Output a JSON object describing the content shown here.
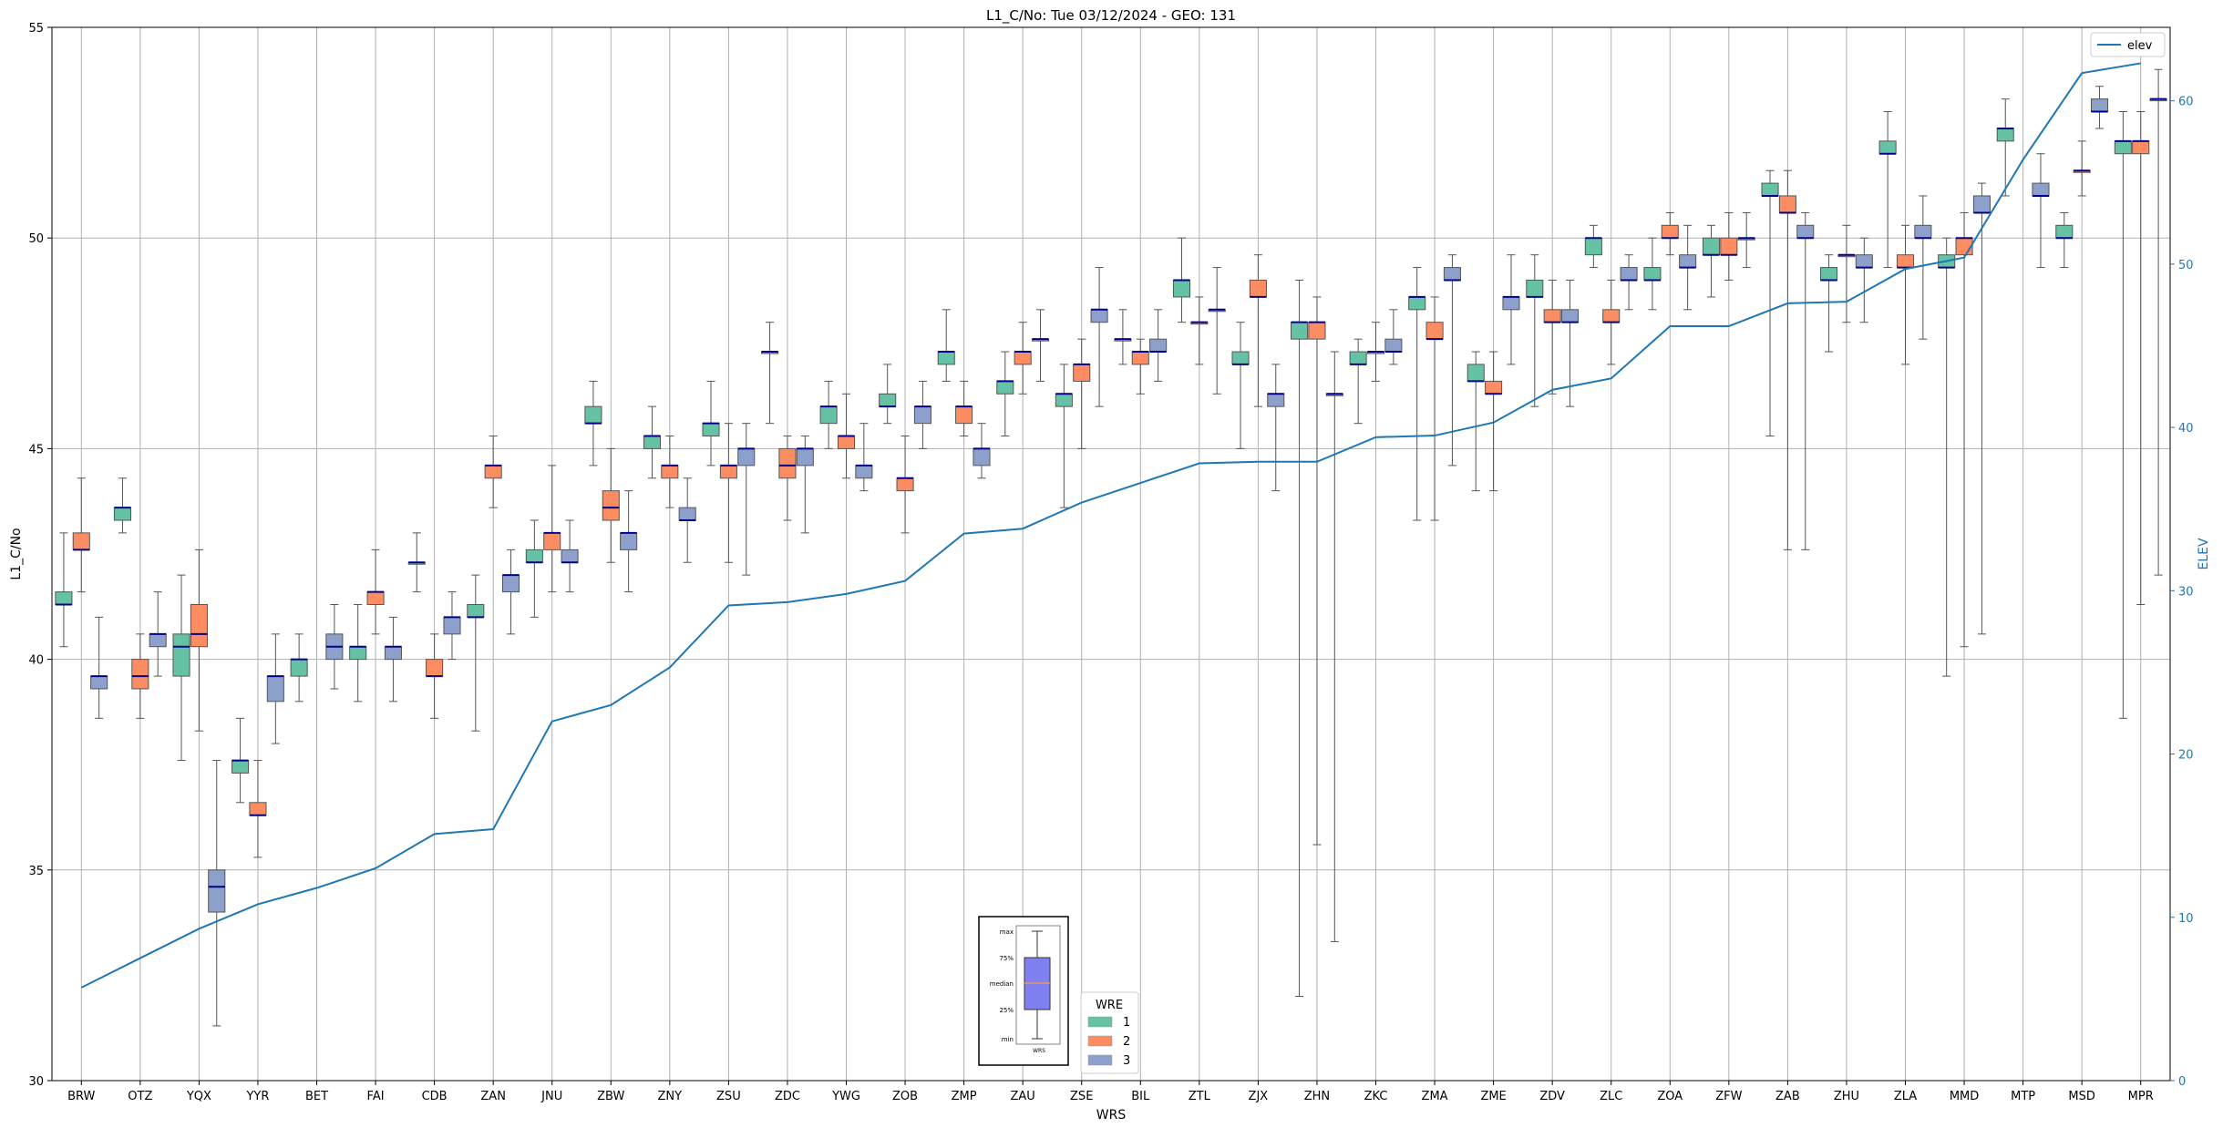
{
  "chart_data": {
    "type": "box",
    "title": "L1_C/No: Tue 03/12/2024 - GEO: 131",
    "xlabel": "WRS",
    "ylabel": "L1_C/No",
    "y2label": "ELEV",
    "ylim": [
      30,
      55
    ],
    "y2lim": [
      0,
      64.5
    ],
    "yticks": [
      30,
      35,
      40,
      45,
      50,
      55
    ],
    "y2ticks": [
      0,
      10,
      20,
      30,
      40,
      50,
      60
    ],
    "grid": true,
    "categories": [
      "BRW",
      "OTZ",
      "YQX",
      "YYR",
      "BET",
      "FAI",
      "CDB",
      "ZAN",
      "JNU",
      "ZBW",
      "ZNY",
      "ZSU",
      "ZDC",
      "YWG",
      "ZOB",
      "ZMP",
      "ZAU",
      "ZSE",
      "BIL",
      "ZTL",
      "ZJX",
      "ZHN",
      "ZKC",
      "ZMA",
      "ZME",
      "ZDV",
      "ZLC",
      "ZOA",
      "ZFW",
      "ZAB",
      "ZHU",
      "ZLA",
      "MMD",
      "MTP",
      "MSD",
      "MPR"
    ],
    "legend_line": {
      "label": "elev",
      "position": "top-right"
    },
    "legend_wre": {
      "title": "WRE",
      "position": "bottom-center",
      "entries": [
        "1",
        "2",
        "3"
      ]
    },
    "wre_colors": {
      "1": "#66c2a5",
      "2": "#fc8d62",
      "3": "#8da0cb"
    },
    "median_color": "#00008b",
    "elev_color": "#1f77b4",
    "box_key_labels": [
      "max",
      "75%",
      "median",
      "25%",
      "min"
    ],
    "box_key_xlabel": "WRS",
    "elev": [
      5.7,
      7.5,
      9.3,
      10.8,
      11.8,
      13.0,
      15.1,
      15.4,
      22.0,
      23.0,
      25.3,
      29.1,
      29.3,
      29.8,
      30.6,
      33.5,
      33.8,
      35.4,
      36.6,
      37.8,
      37.9,
      37.9,
      39.4,
      39.5,
      40.3,
      42.3,
      43.0,
      46.2,
      46.2,
      47.6,
      47.7,
      49.7,
      50.4,
      56.4,
      61.7,
      62.3
    ],
    "boxes": [
      {
        "wrs": "BRW",
        "wre": 1,
        "min": 40.3,
        "q1": 41.3,
        "med": 41.3,
        "q3": 41.6,
        "max": 43.0
      },
      {
        "wrs": "BRW",
        "wre": 2,
        "min": 41.6,
        "q1": 42.6,
        "med": 42.6,
        "q3": 43.0,
        "max": 44.3
      },
      {
        "wrs": "BRW",
        "wre": 3,
        "min": 38.6,
        "q1": 39.3,
        "med": 39.6,
        "q3": 39.6,
        "max": 41.0
      },
      {
        "wrs": "OTZ",
        "wre": 1,
        "min": 43.0,
        "q1": 43.3,
        "med": 43.6,
        "q3": 43.6,
        "max": 44.3
      },
      {
        "wrs": "OTZ",
        "wre": 2,
        "min": 38.6,
        "q1": 39.3,
        "med": 39.6,
        "q3": 40.0,
        "max": 40.6
      },
      {
        "wrs": "OTZ",
        "wre": 3,
        "min": 39.6,
        "q1": 40.3,
        "med": 40.6,
        "q3": 40.6,
        "max": 41.6
      },
      {
        "wrs": "YQX",
        "wre": 1,
        "min": 37.6,
        "q1": 39.6,
        "med": 40.3,
        "q3": 40.6,
        "max": 42.0
      },
      {
        "wrs": "YQX",
        "wre": 2,
        "min": 38.3,
        "q1": 40.3,
        "med": 40.6,
        "q3": 41.3,
        "max": 42.6
      },
      {
        "wrs": "YQX",
        "wre": 3,
        "min": 31.3,
        "q1": 34.0,
        "med": 34.6,
        "q3": 35.0,
        "max": 37.6
      },
      {
        "wrs": "YYR",
        "wre": 1,
        "min": 36.6,
        "q1": 37.3,
        "med": 37.6,
        "q3": 37.6,
        "max": 38.6
      },
      {
        "wrs": "YYR",
        "wre": 2,
        "min": 35.3,
        "q1": 36.3,
        "med": 36.3,
        "q3": 36.6,
        "max": 37.6
      },
      {
        "wrs": "YYR",
        "wre": 3,
        "min": 38.0,
        "q1": 39.0,
        "med": 39.6,
        "q3": 39.6,
        "max": 40.6
      },
      {
        "wrs": "BET",
        "wre": 1,
        "min": 39.0,
        "q1": 39.6,
        "med": 40.0,
        "q3": 40.0,
        "max": 40.6
      },
      {
        "wrs": "BET",
        "wre": 3,
        "min": 39.3,
        "q1": 40.0,
        "med": 40.3,
        "q3": 40.6,
        "max": 41.3
      },
      {
        "wrs": "FAI",
        "wre": 1,
        "min": 39.0,
        "q1": 40.0,
        "med": 40.3,
        "q3": 40.3,
        "max": 41.3
      },
      {
        "wrs": "FAI",
        "wre": 2,
        "min": 40.6,
        "q1": 41.3,
        "med": 41.6,
        "q3": 41.6,
        "max": 42.6
      },
      {
        "wrs": "FAI",
        "wre": 3,
        "min": 39.0,
        "q1": 40.0,
        "med": 40.3,
        "q3": 40.3,
        "max": 41.0
      },
      {
        "wrs": "CDB",
        "wre": 1,
        "min": 41.6,
        "q1": 42.3,
        "med": 42.3,
        "q3": 42.3,
        "max": 43.0
      },
      {
        "wrs": "CDB",
        "wre": 2,
        "min": 38.6,
        "q1": 39.6,
        "med": 39.6,
        "q3": 40.0,
        "max": 40.6
      },
      {
        "wrs": "CDB",
        "wre": 3,
        "min": 40.0,
        "q1": 40.6,
        "med": 41.0,
        "q3": 41.0,
        "max": 41.6
      },
      {
        "wrs": "ZAN",
        "wre": 1,
        "min": 38.3,
        "q1": 41.0,
        "med": 41.0,
        "q3": 41.3,
        "max": 42.0
      },
      {
        "wrs": "ZAN",
        "wre": 2,
        "min": 43.6,
        "q1": 44.3,
        "med": 44.6,
        "q3": 44.6,
        "max": 45.3
      },
      {
        "wrs": "ZAN",
        "wre": 3,
        "min": 40.6,
        "q1": 41.6,
        "med": 42.0,
        "q3": 42.0,
        "max": 42.6
      },
      {
        "wrs": "JNU",
        "wre": 1,
        "min": 41.0,
        "q1": 42.3,
        "med": 42.3,
        "q3": 42.6,
        "max": 43.3
      },
      {
        "wrs": "JNU",
        "wre": 2,
        "min": 41.6,
        "q1": 42.6,
        "med": 43.0,
        "q3": 43.0,
        "max": 44.6
      },
      {
        "wrs": "JNU",
        "wre": 3,
        "min": 41.6,
        "q1": 42.3,
        "med": 42.3,
        "q3": 42.6,
        "max": 43.3
      },
      {
        "wrs": "ZBW",
        "wre": 1,
        "min": 44.6,
        "q1": 45.6,
        "med": 45.6,
        "q3": 46.0,
        "max": 46.6
      },
      {
        "wrs": "ZBW",
        "wre": 2,
        "min": 42.3,
        "q1": 43.3,
        "med": 43.6,
        "q3": 44.0,
        "max": 45.0
      },
      {
        "wrs": "ZBW",
        "wre": 3,
        "min": 41.6,
        "q1": 42.6,
        "med": 43.0,
        "q3": 43.0,
        "max": 44.0
      },
      {
        "wrs": "ZNY",
        "wre": 1,
        "min": 44.3,
        "q1": 45.0,
        "med": 45.3,
        "q3": 45.3,
        "max": 46.0
      },
      {
        "wrs": "ZNY",
        "wre": 2,
        "min": 43.6,
        "q1": 44.3,
        "med": 44.6,
        "q3": 44.6,
        "max": 45.3
      },
      {
        "wrs": "ZNY",
        "wre": 3,
        "min": 42.3,
        "q1": 43.3,
        "med": 43.3,
        "q3": 43.6,
        "max": 44.3
      },
      {
        "wrs": "ZSU",
        "wre": 1,
        "min": 44.6,
        "q1": 45.3,
        "med": 45.6,
        "q3": 45.6,
        "max": 46.6
      },
      {
        "wrs": "ZSU",
        "wre": 2,
        "min": 42.3,
        "q1": 44.3,
        "med": 44.6,
        "q3": 44.6,
        "max": 45.6
      },
      {
        "wrs": "ZSU",
        "wre": 3,
        "min": 42.0,
        "q1": 44.6,
        "med": 45.0,
        "q3": 45.0,
        "max": 45.6
      },
      {
        "wrs": "ZDC",
        "wre": 1,
        "min": 45.6,
        "q1": 47.3,
        "med": 47.3,
        "q3": 47.3,
        "max": 48.0
      },
      {
        "wrs": "ZDC",
        "wre": 2,
        "min": 43.3,
        "q1": 44.3,
        "med": 44.6,
        "q3": 45.0,
        "max": 45.3
      },
      {
        "wrs": "ZDC",
        "wre": 3,
        "min": 43.0,
        "q1": 44.6,
        "med": 45.0,
        "q3": 45.0,
        "max": 45.3
      },
      {
        "wrs": "YWG",
        "wre": 1,
        "min": 45.0,
        "q1": 45.6,
        "med": 46.0,
        "q3": 46.0,
        "max": 46.6
      },
      {
        "wrs": "YWG",
        "wre": 2,
        "min": 44.3,
        "q1": 45.0,
        "med": 45.3,
        "q3": 45.3,
        "max": 46.3
      },
      {
        "wrs": "YWG",
        "wre": 3,
        "min": 44.0,
        "q1": 44.3,
        "med": 44.6,
        "q3": 44.6,
        "max": 45.6
      },
      {
        "wrs": "ZOB",
        "wre": 1,
        "min": 45.6,
        "q1": 46.0,
        "med": 46.0,
        "q3": 46.3,
        "max": 47.0
      },
      {
        "wrs": "ZOB",
        "wre": 2,
        "min": 43.0,
        "q1": 44.0,
        "med": 44.3,
        "q3": 44.3,
        "max": 45.3
      },
      {
        "wrs": "ZOB",
        "wre": 3,
        "min": 45.0,
        "q1": 45.6,
        "med": 46.0,
        "q3": 46.0,
        "max": 46.6
      },
      {
        "wrs": "ZMP",
        "wre": 1,
        "min": 46.6,
        "q1": 47.0,
        "med": 47.3,
        "q3": 47.3,
        "max": 48.3
      },
      {
        "wrs": "ZMP",
        "wre": 2,
        "min": 45.3,
        "q1": 45.6,
        "med": 46.0,
        "q3": 46.0,
        "max": 46.6
      },
      {
        "wrs": "ZMP",
        "wre": 3,
        "min": 44.3,
        "q1": 44.6,
        "med": 45.0,
        "q3": 45.0,
        "max": 45.6
      },
      {
        "wrs": "ZAU",
        "wre": 1,
        "min": 45.3,
        "q1": 46.3,
        "med": 46.6,
        "q3": 46.6,
        "max": 47.3
      },
      {
        "wrs": "ZAU",
        "wre": 2,
        "min": 46.3,
        "q1": 47.0,
        "med": 47.3,
        "q3": 47.3,
        "max": 48.0
      },
      {
        "wrs": "ZAU",
        "wre": 3,
        "min": 46.6,
        "q1": 47.6,
        "med": 47.6,
        "q3": 47.6,
        "max": 48.3
      },
      {
        "wrs": "ZSE",
        "wre": 1,
        "min": 43.6,
        "q1": 46.0,
        "med": 46.3,
        "q3": 46.3,
        "max": 47.0
      },
      {
        "wrs": "ZSE",
        "wre": 2,
        "min": 45.0,
        "q1": 46.6,
        "med": 47.0,
        "q3": 47.0,
        "max": 47.6
      },
      {
        "wrs": "ZSE",
        "wre": 3,
        "min": 46.0,
        "q1": 48.0,
        "med": 48.3,
        "q3": 48.3,
        "max": 49.3
      },
      {
        "wrs": "BIL",
        "wre": 1,
        "min": 47.0,
        "q1": 47.6,
        "med": 47.6,
        "q3": 47.6,
        "max": 48.3
      },
      {
        "wrs": "BIL",
        "wre": 2,
        "min": 46.3,
        "q1": 47.0,
        "med": 47.3,
        "q3": 47.3,
        "max": 47.6
      },
      {
        "wrs": "BIL",
        "wre": 3,
        "min": 46.6,
        "q1": 47.3,
        "med": 47.3,
        "q3": 47.6,
        "max": 48.3
      },
      {
        "wrs": "ZTL",
        "wre": 1,
        "min": 48.0,
        "q1": 48.6,
        "med": 49.0,
        "q3": 49.0,
        "max": 50.0
      },
      {
        "wrs": "ZTL",
        "wre": 2,
        "min": 47.0,
        "q1": 48.0,
        "med": 48.0,
        "q3": 48.0,
        "max": 48.6
      },
      {
        "wrs": "ZTL",
        "wre": 3,
        "min": 46.3,
        "q1": 48.3,
        "med": 48.3,
        "q3": 48.3,
        "max": 49.3
      },
      {
        "wrs": "ZJX",
        "wre": 1,
        "min": 45.0,
        "q1": 47.0,
        "med": 47.0,
        "q3": 47.3,
        "max": 48.0
      },
      {
        "wrs": "ZJX",
        "wre": 2,
        "min": 46.0,
        "q1": 48.6,
        "med": 48.6,
        "q3": 49.0,
        "max": 49.6
      },
      {
        "wrs": "ZJX",
        "wre": 3,
        "min": 44.0,
        "q1": 46.0,
        "med": 46.3,
        "q3": 46.3,
        "max": 47.0
      },
      {
        "wrs": "ZHN",
        "wre": 1,
        "min": 32.0,
        "q1": 47.6,
        "med": 48.0,
        "q3": 48.0,
        "max": 49.0
      },
      {
        "wrs": "ZHN",
        "wre": 2,
        "min": 35.6,
        "q1": 47.6,
        "med": 48.0,
        "q3": 48.0,
        "max": 48.6
      },
      {
        "wrs": "ZHN",
        "wre": 3,
        "min": 33.3,
        "q1": 46.3,
        "med": 46.3,
        "q3": 46.3,
        "max": 47.3
      },
      {
        "wrs": "ZKC",
        "wre": 1,
        "min": 45.6,
        "q1": 47.0,
        "med": 47.0,
        "q3": 47.3,
        "max": 47.6
      },
      {
        "wrs": "ZKC",
        "wre": 2,
        "min": 46.6,
        "q1": 47.3,
        "med": 47.3,
        "q3": 47.3,
        "max": 48.0
      },
      {
        "wrs": "ZKC",
        "wre": 3,
        "min": 47.0,
        "q1": 47.3,
        "med": 47.3,
        "q3": 47.6,
        "max": 48.3
      },
      {
        "wrs": "ZMA",
        "wre": 1,
        "min": 43.3,
        "q1": 48.3,
        "med": 48.6,
        "q3": 48.6,
        "max": 49.3
      },
      {
        "wrs": "ZMA",
        "wre": 2,
        "min": 43.3,
        "q1": 47.6,
        "med": 47.6,
        "q3": 48.0,
        "max": 48.6
      },
      {
        "wrs": "ZMA",
        "wre": 3,
        "min": 44.6,
        "q1": 49.0,
        "med": 49.0,
        "q3": 49.3,
        "max": 49.6
      },
      {
        "wrs": "ZME",
        "wre": 1,
        "min": 44.0,
        "q1": 46.6,
        "med": 46.6,
        "q3": 47.0,
        "max": 47.3
      },
      {
        "wrs": "ZME",
        "wre": 2,
        "min": 44.0,
        "q1": 46.3,
        "med": 46.3,
        "q3": 46.6,
        "max": 47.3
      },
      {
        "wrs": "ZME",
        "wre": 3,
        "min": 47.0,
        "q1": 48.3,
        "med": 48.6,
        "q3": 48.6,
        "max": 49.6
      },
      {
        "wrs": "ZDV",
        "wre": 1,
        "min": 46.0,
        "q1": 48.6,
        "med": 48.6,
        "q3": 49.0,
        "max": 49.6
      },
      {
        "wrs": "ZDV",
        "wre": 2,
        "min": 46.3,
        "q1": 48.0,
        "med": 48.0,
        "q3": 48.3,
        "max": 49.0
      },
      {
        "wrs": "ZDV",
        "wre": 3,
        "min": 46.0,
        "q1": 48.0,
        "med": 48.0,
        "q3": 48.3,
        "max": 49.0
      },
      {
        "wrs": "ZLC",
        "wre": 1,
        "min": 49.3,
        "q1": 49.6,
        "med": 50.0,
        "q3": 50.0,
        "max": 50.3
      },
      {
        "wrs": "ZLC",
        "wre": 2,
        "min": 47.0,
        "q1": 48.0,
        "med": 48.0,
        "q3": 48.3,
        "max": 49.0
      },
      {
        "wrs": "ZLC",
        "wre": 3,
        "min": 48.3,
        "q1": 49.0,
        "med": 49.0,
        "q3": 49.3,
        "max": 49.6
      },
      {
        "wrs": "ZOA",
        "wre": 1,
        "min": 48.3,
        "q1": 49.0,
        "med": 49.0,
        "q3": 49.3,
        "max": 50.0
      },
      {
        "wrs": "ZOA",
        "wre": 2,
        "min": 49.6,
        "q1": 50.0,
        "med": 50.0,
        "q3": 50.3,
        "max": 50.6
      },
      {
        "wrs": "ZOA",
        "wre": 3,
        "min": 48.3,
        "q1": 49.3,
        "med": 49.3,
        "q3": 49.6,
        "max": 50.3
      },
      {
        "wrs": "ZFW",
        "wre": 1,
        "min": 48.6,
        "q1": 49.6,
        "med": 49.6,
        "q3": 50.0,
        "max": 50.3
      },
      {
        "wrs": "ZFW",
        "wre": 2,
        "min": 49.0,
        "q1": 49.6,
        "med": 49.6,
        "q3": 50.0,
        "max": 50.6
      },
      {
        "wrs": "ZFW",
        "wre": 3,
        "min": 49.3,
        "q1": 50.0,
        "med": 50.0,
        "q3": 50.0,
        "max": 50.6
      },
      {
        "wrs": "ZAB",
        "wre": 1,
        "min": 45.3,
        "q1": 51.0,
        "med": 51.0,
        "q3": 51.3,
        "max": 51.6
      },
      {
        "wrs": "ZAB",
        "wre": 2,
        "min": 42.6,
        "q1": 50.6,
        "med": 50.6,
        "q3": 51.0,
        "max": 51.6
      },
      {
        "wrs": "ZAB",
        "wre": 3,
        "min": 42.6,
        "q1": 50.0,
        "med": 50.0,
        "q3": 50.3,
        "max": 50.6
      },
      {
        "wrs": "ZHU",
        "wre": 1,
        "min": 47.3,
        "q1": 49.0,
        "med": 49.0,
        "q3": 49.3,
        "max": 49.6
      },
      {
        "wrs": "ZHU",
        "wre": 2,
        "min": 48.0,
        "q1": 49.6,
        "med": 49.6,
        "q3": 49.6,
        "max": 50.3
      },
      {
        "wrs": "ZHU",
        "wre": 3,
        "min": 48.0,
        "q1": 49.3,
        "med": 49.3,
        "q3": 49.6,
        "max": 50.0
      },
      {
        "wrs": "ZLA",
        "wre": 1,
        "min": 49.3,
        "q1": 52.0,
        "med": 52.0,
        "q3": 52.3,
        "max": 53.0
      },
      {
        "wrs": "ZLA",
        "wre": 2,
        "min": 47.0,
        "q1": 49.3,
        "med": 49.3,
        "q3": 49.6,
        "max": 50.3
      },
      {
        "wrs": "ZLA",
        "wre": 3,
        "min": 47.6,
        "q1": 50.0,
        "med": 50.0,
        "q3": 50.3,
        "max": 51.0
      },
      {
        "wrs": "MMD",
        "wre": 1,
        "min": 39.6,
        "q1": 49.3,
        "med": 49.3,
        "q3": 49.6,
        "max": 50.0
      },
      {
        "wrs": "MMD",
        "wre": 2,
        "min": 40.3,
        "q1": 49.6,
        "med": 50.0,
        "q3": 50.0,
        "max": 50.6
      },
      {
        "wrs": "MMD",
        "wre": 3,
        "min": 40.6,
        "q1": 50.6,
        "med": 50.6,
        "q3": 51.0,
        "max": 51.3
      },
      {
        "wrs": "MTP",
        "wre": 1,
        "min": 51.0,
        "q1": 52.3,
        "med": 52.6,
        "q3": 52.6,
        "max": 53.3
      },
      {
        "wrs": "MTP",
        "wre": 3,
        "min": 49.3,
        "q1": 51.0,
        "med": 51.0,
        "q3": 51.3,
        "max": 52.0
      },
      {
        "wrs": "MSD",
        "wre": 1,
        "min": 49.3,
        "q1": 50.0,
        "med": 50.0,
        "q3": 50.3,
        "max": 50.6
      },
      {
        "wrs": "MSD",
        "wre": 2,
        "min": 51.0,
        "q1": 51.6,
        "med": 51.6,
        "q3": 51.6,
        "max": 52.3
      },
      {
        "wrs": "MSD",
        "wre": 3,
        "min": 52.6,
        "q1": 53.0,
        "med": 53.0,
        "q3": 53.3,
        "max": 53.6
      },
      {
        "wrs": "MPR",
        "wre": 1,
        "min": 38.6,
        "q1": 52.0,
        "med": 52.3,
        "q3": 52.3,
        "max": 53.0
      },
      {
        "wrs": "MPR",
        "wre": 2,
        "min": 41.3,
        "q1": 52.0,
        "med": 52.3,
        "q3": 52.3,
        "max": 53.0
      },
      {
        "wrs": "MPR",
        "wre": 3,
        "min": 42.0,
        "q1": 53.3,
        "med": 53.3,
        "q3": 53.3,
        "max": 54.0
      }
    ]
  }
}
